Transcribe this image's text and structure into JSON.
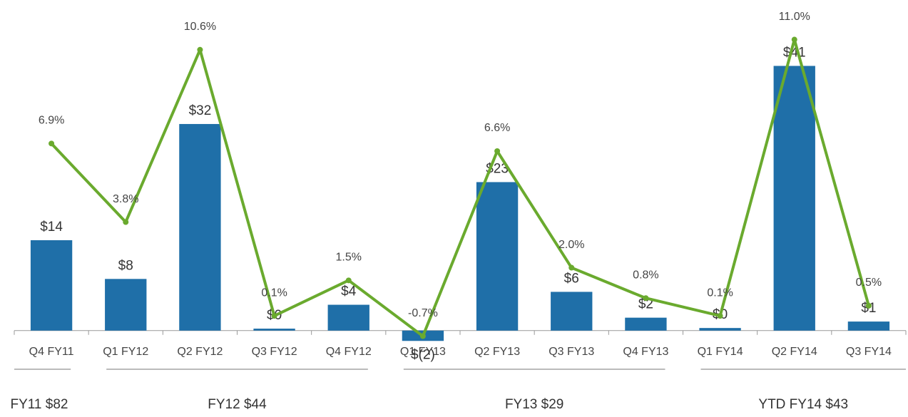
{
  "chart_data": {
    "type": "combo",
    "categories": [
      "Q4 FY11",
      "Q1 FY12",
      "Q2 FY12",
      "Q3 FY12",
      "Q4 FY12",
      "Q1 FY13",
      "Q2 FY13",
      "Q3 FY13",
      "Q4 FY13",
      "Q1 FY14",
      "Q2 FY14",
      "Q3 FY14"
    ],
    "series": [
      {
        "type": "bar",
        "color": "#1f6fa8",
        "values": [
          14,
          8,
          32,
          0.3,
          4,
          -1.6,
          23,
          6,
          2,
          0.4,
          41,
          1.4
        ],
        "value_labels": [
          "$14",
          "$8",
          "$32",
          "$0",
          "$4",
          "$(2)",
          "$23",
          "$6",
          "$2",
          "$0",
          "$41",
          "$1"
        ]
      },
      {
        "type": "line",
        "axis": "y2",
        "color": "#6aaa2e",
        "values": [
          6.9,
          3.8,
          10.6,
          0.1,
          1.5,
          -0.7,
          6.6,
          2.0,
          0.8,
          0.1,
          11.0,
          0.5
        ],
        "value_labels": [
          "6.9%",
          "3.8%",
          "10.6%",
          "0.1%",
          "1.5%",
          "-0.7%",
          "6.6%",
          "2.0%",
          "0.8%",
          "0.1%",
          "11.0%",
          "0.5%"
        ]
      }
    ],
    "ylim": [
      -4,
      49
    ],
    "y2lim": [
      -1.5,
      12
    ],
    "group_labels": [
      "FY11  $82",
      "FY12  $44",
      "FY13 $29",
      "YTD FY14 $43"
    ]
  }
}
